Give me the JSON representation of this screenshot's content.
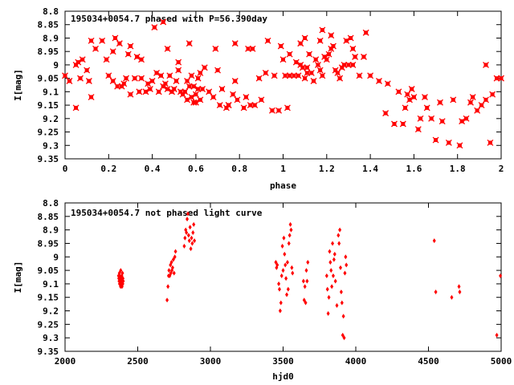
{
  "chart_data": [
    {
      "type": "scatter",
      "title": "195034+0054.7 phased with P=56.390day",
      "xlabel": "phase",
      "ylabel": "I[mag]",
      "xlim": [
        0,
        2
      ],
      "ylim": [
        8.8,
        9.35
      ],
      "y_inverted": true,
      "x_ticks": [
        "0",
        "0.2",
        "0.4",
        "0.6",
        "0.8",
        "1",
        "1.2",
        "1.4",
        "1.6",
        "1.8",
        "2"
      ],
      "y_ticks": [
        "8.8",
        "8.85",
        "8.9",
        "8.95",
        "9",
        "9.05",
        "9.1",
        "9.15",
        "9.2",
        "9.25",
        "9.3",
        "9.35"
      ],
      "grid": false,
      "marker_color": "#ff0000",
      "points": [
        [
          0.0,
          9.04
        ],
        [
          0.02,
          9.06
        ],
        [
          0.05,
          9.16
        ],
        [
          0.05,
          9.0
        ],
        [
          0.06,
          8.99
        ],
        [
          0.07,
          9.05
        ],
        [
          0.08,
          8.98
        ],
        [
          0.1,
          9.02
        ],
        [
          0.11,
          9.06
        ],
        [
          0.12,
          9.12
        ],
        [
          0.12,
          8.91
        ],
        [
          0.14,
          8.94
        ],
        [
          0.17,
          8.91
        ],
        [
          0.19,
          8.98
        ],
        [
          0.2,
          9.04
        ],
        [
          0.22,
          9.06
        ],
        [
          0.22,
          8.95
        ],
        [
          0.23,
          8.9
        ],
        [
          0.24,
          9.08
        ],
        [
          0.25,
          8.92
        ],
        [
          0.26,
          9.08
        ],
        [
          0.27,
          9.07
        ],
        [
          0.28,
          9.05
        ],
        [
          0.29,
          8.96
        ],
        [
          0.3,
          9.11
        ],
        [
          0.3,
          8.93
        ],
        [
          0.32,
          9.05
        ],
        [
          0.33,
          8.97
        ],
        [
          0.34,
          9.1
        ],
        [
          0.35,
          9.05
        ],
        [
          0.35,
          8.98
        ],
        [
          0.37,
          9.1
        ],
        [
          0.38,
          9.07
        ],
        [
          0.39,
          9.09
        ],
        [
          0.4,
          9.06
        ],
        [
          0.41,
          8.86
        ],
        [
          0.42,
          9.03
        ],
        [
          0.43,
          9.1
        ],
        [
          0.44,
          9.04
        ],
        [
          0.45,
          9.08
        ],
        [
          0.45,
          8.84
        ],
        [
          0.46,
          9.07
        ],
        [
          0.47,
          9.09
        ],
        [
          0.47,
          8.94
        ],
        [
          0.48,
          9.04
        ],
        [
          0.49,
          9.1
        ],
        [
          0.5,
          9.09
        ],
        [
          0.51,
          9.06
        ],
        [
          0.52,
          9.02
        ],
        [
          0.52,
          8.99
        ],
        [
          0.53,
          9.1
        ],
        [
          0.54,
          9.11
        ],
        [
          0.55,
          9.1
        ],
        [
          0.56,
          9.06
        ],
        [
          0.56,
          9.13
        ],
        [
          0.57,
          9.08
        ],
        [
          0.57,
          8.92
        ],
        [
          0.58,
          9.12
        ],
        [
          0.58,
          9.04
        ],
        [
          0.59,
          9.14
        ],
        [
          0.59,
          9.08
        ],
        [
          0.6,
          9.11
        ],
        [
          0.6,
          9.14
        ],
        [
          0.61,
          9.09
        ],
        [
          0.61,
          9.05
        ],
        [
          0.62,
          9.13
        ],
        [
          0.62,
          9.03
        ],
        [
          0.63,
          9.09
        ],
        [
          0.64,
          9.01
        ],
        [
          0.66,
          9.1
        ],
        [
          0.68,
          9.12
        ],
        [
          0.69,
          8.94
        ],
        [
          0.7,
          9.02
        ],
        [
          0.71,
          9.15
        ],
        [
          0.72,
          9.09
        ],
        [
          0.74,
          9.16
        ],
        [
          0.75,
          9.15
        ],
        [
          0.75,
          9.15
        ],
        [
          0.77,
          9.11
        ],
        [
          0.78,
          9.06
        ],
        [
          0.78,
          8.92
        ],
        [
          0.79,
          9.13
        ],
        [
          0.82,
          9.16
        ],
        [
          0.83,
          9.12
        ],
        [
          0.84,
          8.94
        ],
        [
          0.85,
          9.15
        ],
        [
          0.86,
          8.94
        ],
        [
          0.87,
          9.15
        ],
        [
          0.89,
          9.05
        ],
        [
          0.9,
          9.13
        ],
        [
          0.92,
          9.03
        ],
        [
          0.93,
          8.91
        ],
        [
          0.95,
          9.17
        ],
        [
          0.96,
          9.04
        ],
        [
          0.98,
          9.17
        ],
        [
          0.99,
          8.93
        ],
        [
          1.0,
          8.98
        ],
        [
          1.01,
          9.04
        ],
        [
          1.02,
          9.16
        ],
        [
          1.03,
          9.04
        ],
        [
          1.03,
          8.96
        ],
        [
          1.05,
          9.04
        ],
        [
          1.06,
          8.99
        ],
        [
          1.07,
          9.04
        ],
        [
          1.08,
          8.92
        ],
        [
          1.08,
          9.0
        ],
        [
          1.09,
          9.01
        ],
        [
          1.1,
          8.9
        ],
        [
          1.1,
          9.05
        ],
        [
          1.11,
          9.01
        ],
        [
          1.11,
          9.03
        ],
        [
          1.12,
          8.96
        ],
        [
          1.13,
          9.03
        ],
        [
          1.14,
          9.06
        ],
        [
          1.15,
          8.98
        ],
        [
          1.16,
          9.0
        ],
        [
          1.17,
          9.02
        ],
        [
          1.17,
          8.91
        ],
        [
          1.18,
          9.04
        ],
        [
          1.18,
          8.87
        ],
        [
          1.19,
          8.97
        ],
        [
          1.2,
          8.98
        ],
        [
          1.21,
          8.96
        ],
        [
          1.22,
          8.89
        ],
        [
          1.22,
          8.94
        ],
        [
          1.23,
          8.93
        ],
        [
          1.24,
          9.02
        ],
        [
          1.25,
          9.03
        ],
        [
          1.26,
          9.05
        ],
        [
          1.27,
          9.01
        ],
        [
          1.28,
          9.0
        ],
        [
          1.29,
          8.91
        ],
        [
          1.3,
          9.0
        ],
        [
          1.31,
          8.9
        ],
        [
          1.32,
          9.0
        ],
        [
          1.32,
          8.94
        ],
        [
          1.33,
          8.97
        ],
        [
          1.35,
          9.04
        ],
        [
          1.37,
          8.97
        ],
        [
          1.38,
          8.88
        ],
        [
          1.4,
          9.04
        ],
        [
          1.44,
          9.06
        ],
        [
          1.47,
          9.18
        ],
        [
          1.48,
          9.07
        ],
        [
          1.51,
          9.22
        ],
        [
          1.53,
          9.1
        ],
        [
          1.55,
          9.22
        ],
        [
          1.56,
          9.16
        ],
        [
          1.57,
          9.11
        ],
        [
          1.58,
          9.13
        ],
        [
          1.59,
          9.09
        ],
        [
          1.6,
          9.12
        ],
        [
          1.62,
          9.24
        ],
        [
          1.63,
          9.2
        ],
        [
          1.65,
          9.12
        ],
        [
          1.66,
          9.16
        ],
        [
          1.68,
          9.2
        ],
        [
          1.7,
          9.28
        ],
        [
          1.72,
          9.14
        ],
        [
          1.73,
          9.21
        ],
        [
          1.76,
          9.29
        ],
        [
          1.78,
          9.13
        ],
        [
          1.81,
          9.3
        ],
        [
          1.82,
          9.21
        ],
        [
          1.84,
          9.2
        ],
        [
          1.86,
          9.14
        ],
        [
          1.87,
          9.12
        ],
        [
          1.89,
          9.17
        ],
        [
          1.91,
          9.15
        ],
        [
          1.93,
          9.13
        ],
        [
          1.93,
          9.0
        ],
        [
          1.95,
          9.29
        ],
        [
          1.96,
          9.11
        ],
        [
          1.98,
          9.05
        ],
        [
          2.0,
          9.05
        ]
      ]
    },
    {
      "type": "scatter",
      "title": "195034+0054.7 not phased light curve",
      "xlabel": "hjd0",
      "ylabel": "I[mag]",
      "xlim": [
        2000,
        5000
      ],
      "ylim": [
        8.8,
        9.35
      ],
      "y_inverted": true,
      "x_ticks": [
        "2000",
        "2500",
        "3000",
        "3500",
        "4000",
        "4500",
        "5000"
      ],
      "y_ticks": [
        "8.8",
        "8.85",
        "8.9",
        "8.95",
        "9",
        "9.05",
        "9.1",
        "9.15",
        "9.2",
        "9.25",
        "9.3",
        "9.35"
      ],
      "grid": false,
      "marker_color": "#ff0000",
      "points": [
        [
          2368,
          9.07
        ],
        [
          2370,
          9.08
        ],
        [
          2372,
          9.09
        ],
        [
          2374,
          9.06
        ],
        [
          2375,
          9.1
        ],
        [
          2377,
          9.07
        ],
        [
          2378,
          9.09
        ],
        [
          2380,
          9.08
        ],
        [
          2382,
          9.11
        ],
        [
          2383,
          9.05
        ],
        [
          2385,
          9.09
        ],
        [
          2387,
          9.1
        ],
        [
          2388,
          9.08
        ],
        [
          2390,
          9.07
        ],
        [
          2392,
          9.11
        ],
        [
          2393,
          9.09
        ],
        [
          2395,
          9.06
        ],
        [
          2397,
          9.1
        ],
        [
          2398,
          9.08
        ],
        [
          2400,
          9.09
        ],
        [
          2702,
          9.16
        ],
        [
          2708,
          9.11
        ],
        [
          2712,
          9.07
        ],
        [
          2715,
          9.05
        ],
        [
          2720,
          9.07
        ],
        [
          2725,
          9.03
        ],
        [
          2728,
          9.06
        ],
        [
          2732,
          9.02
        ],
        [
          2735,
          9.05
        ],
        [
          2740,
          9.04
        ],
        [
          2745,
          9.01
        ],
        [
          2750,
          9.06
        ],
        [
          2755,
          9.0
        ],
        [
          2760,
          8.98
        ],
        [
          2820,
          8.96
        ],
        [
          2825,
          8.93
        ],
        [
          2830,
          8.9
        ],
        [
          2835,
          8.91
        ],
        [
          2840,
          8.86
        ],
        [
          2845,
          8.84
        ],
        [
          2850,
          8.92
        ],
        [
          2855,
          8.94
        ],
        [
          2860,
          8.89
        ],
        [
          2865,
          8.97
        ],
        [
          2870,
          8.93
        ],
        [
          2875,
          8.95
        ],
        [
          2880,
          8.91
        ],
        [
          2885,
          8.88
        ],
        [
          2890,
          8.94
        ],
        [
          3450,
          9.02
        ],
        [
          3455,
          9.04
        ],
        [
          3460,
          9.03
        ],
        [
          3470,
          9.1
        ],
        [
          3475,
          9.12
        ],
        [
          3480,
          9.2
        ],
        [
          3485,
          9.17
        ],
        [
          3490,
          9.07
        ],
        [
          3495,
          8.96
        ],
        [
          3500,
          9.05
        ],
        [
          3505,
          8.93
        ],
        [
          3510,
          8.99
        ],
        [
          3515,
          9.03
        ],
        [
          3520,
          9.08
        ],
        [
          3525,
          9.14
        ],
        [
          3530,
          9.02
        ],
        [
          3535,
          9.12
        ],
        [
          3540,
          8.95
        ],
        [
          3545,
          8.92
        ],
        [
          3550,
          8.88
        ],
        [
          3555,
          8.9
        ],
        [
          3560,
          9.04
        ],
        [
          3565,
          9.06
        ],
        [
          3640,
          9.09
        ],
        [
          3645,
          9.16
        ],
        [
          3650,
          9.11
        ],
        [
          3655,
          9.17
        ],
        [
          3660,
          9.05
        ],
        [
          3665,
          9.09
        ],
        [
          3670,
          9.02
        ],
        [
          3800,
          9.07
        ],
        [
          3805,
          9.12
        ],
        [
          3810,
          9.21
        ],
        [
          3815,
          9.15
        ],
        [
          3820,
          8.98
        ],
        [
          3825,
          9.02
        ],
        [
          3830,
          9.05
        ],
        [
          3835,
          9.11
        ],
        [
          3840,
          8.95
        ],
        [
          3845,
          9.07
        ],
        [
          3850,
          9.01
        ],
        [
          3855,
          8.99
        ],
        [
          3860,
          9.09
        ],
        [
          3870,
          9.18
        ],
        [
          3880,
          8.92
        ],
        [
          3885,
          8.95
        ],
        [
          3890,
          8.9
        ],
        [
          3895,
          9.04
        ],
        [
          3900,
          9.13
        ],
        [
          3905,
          9.17
        ],
        [
          3910,
          9.29
        ],
        [
          3915,
          9.22
        ],
        [
          3920,
          9.3
        ],
        [
          3925,
          9.06
        ],
        [
          3930,
          9.0
        ],
        [
          3935,
          9.03
        ],
        [
          4540,
          8.94
        ],
        [
          4550,
          9.13
        ],
        [
          4660,
          9.15
        ],
        [
          4710,
          9.11
        ],
        [
          4715,
          9.13
        ],
        [
          4970,
          9.29
        ],
        [
          4995,
          9.07
        ]
      ]
    }
  ]
}
